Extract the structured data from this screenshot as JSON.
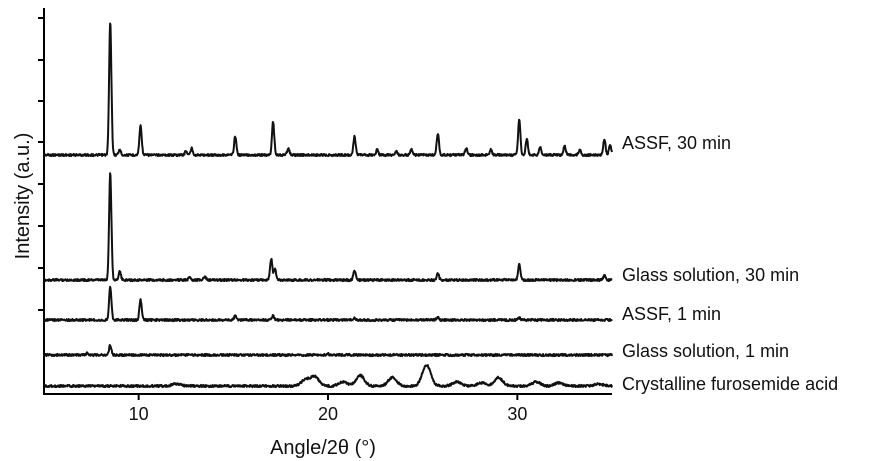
{
  "chart_data": {
    "type": "line",
    "title": "",
    "xlabel": "Angle/2θ (°)",
    "ylabel": "Intensity (a.u.)",
    "xlim": [
      5,
      35
    ],
    "xticks": [
      10,
      20,
      30
    ],
    "grid": false,
    "legend": "none",
    "series_labels_position": "right of each trace",
    "series": [
      {
        "name": "ASSF, 30 min",
        "baseline": 0.0,
        "peaks": [
          {
            "x": 8.5,
            "h": 1.0
          },
          {
            "x": 9.0,
            "h": 0.04
          },
          {
            "x": 10.1,
            "h": 0.22
          },
          {
            "x": 12.5,
            "h": 0.03
          },
          {
            "x": 12.8,
            "h": 0.05
          },
          {
            "x": 15.1,
            "h": 0.14
          },
          {
            "x": 17.1,
            "h": 0.25
          },
          {
            "x": 17.9,
            "h": 0.05
          },
          {
            "x": 21.4,
            "h": 0.14
          },
          {
            "x": 22.6,
            "h": 0.04
          },
          {
            "x": 23.6,
            "h": 0.03
          },
          {
            "x": 24.4,
            "h": 0.04
          },
          {
            "x": 25.8,
            "h": 0.16
          },
          {
            "x": 27.3,
            "h": 0.05
          },
          {
            "x": 28.6,
            "h": 0.04
          },
          {
            "x": 30.1,
            "h": 0.27
          },
          {
            "x": 30.5,
            "h": 0.12
          },
          {
            "x": 31.2,
            "h": 0.06
          },
          {
            "x": 32.5,
            "h": 0.07
          },
          {
            "x": 33.3,
            "h": 0.04
          },
          {
            "x": 34.6,
            "h": 0.12
          },
          {
            "x": 34.9,
            "h": 0.08
          }
        ]
      },
      {
        "name": "Glass solution, 30 min",
        "baseline": 0.0,
        "peaks": [
          {
            "x": 8.5,
            "h": 1.0
          },
          {
            "x": 9.0,
            "h": 0.08
          },
          {
            "x": 12.7,
            "h": 0.03
          },
          {
            "x": 13.5,
            "h": 0.03
          },
          {
            "x": 17.0,
            "h": 0.2
          },
          {
            "x": 17.2,
            "h": 0.1
          },
          {
            "x": 21.4,
            "h": 0.09
          },
          {
            "x": 25.8,
            "h": 0.06
          },
          {
            "x": 30.1,
            "h": 0.15
          },
          {
            "x": 34.6,
            "h": 0.05
          }
        ]
      },
      {
        "name": "ASSF, 1 min",
        "baseline": 0.0,
        "peaks": [
          {
            "x": 8.5,
            "h": 0.32
          },
          {
            "x": 10.1,
            "h": 0.19
          },
          {
            "x": 15.1,
            "h": 0.04
          },
          {
            "x": 17.1,
            "h": 0.04
          },
          {
            "x": 21.4,
            "h": 0.02
          },
          {
            "x": 25.8,
            "h": 0.03
          },
          {
            "x": 30.1,
            "h": 0.02
          }
        ]
      },
      {
        "name": "Glass solution, 1 min",
        "baseline": 0.0,
        "peaks": [
          {
            "x": 7.3,
            "h": 0.02
          },
          {
            "x": 8.5,
            "h": 0.1
          },
          {
            "x": 20.0,
            "h": 0.01
          }
        ]
      },
      {
        "name": "Crystalline furosemide acid",
        "baseline": 0.0,
        "peaks": [
          {
            "x": 12.0,
            "h": 0.02
          },
          {
            "x": 18.8,
            "h": 0.06
          },
          {
            "x": 19.3,
            "h": 0.09
          },
          {
            "x": 20.8,
            "h": 0.04
          },
          {
            "x": 21.7,
            "h": 0.1
          },
          {
            "x": 23.4,
            "h": 0.08
          },
          {
            "x": 25.2,
            "h": 0.2
          },
          {
            "x": 26.8,
            "h": 0.04
          },
          {
            "x": 28.1,
            "h": 0.03
          },
          {
            "x": 29.0,
            "h": 0.08
          },
          {
            "x": 31.0,
            "h": 0.04
          },
          {
            "x": 32.2,
            "h": 0.03
          },
          {
            "x": 34.3,
            "h": 0.02
          }
        ]
      }
    ]
  }
}
